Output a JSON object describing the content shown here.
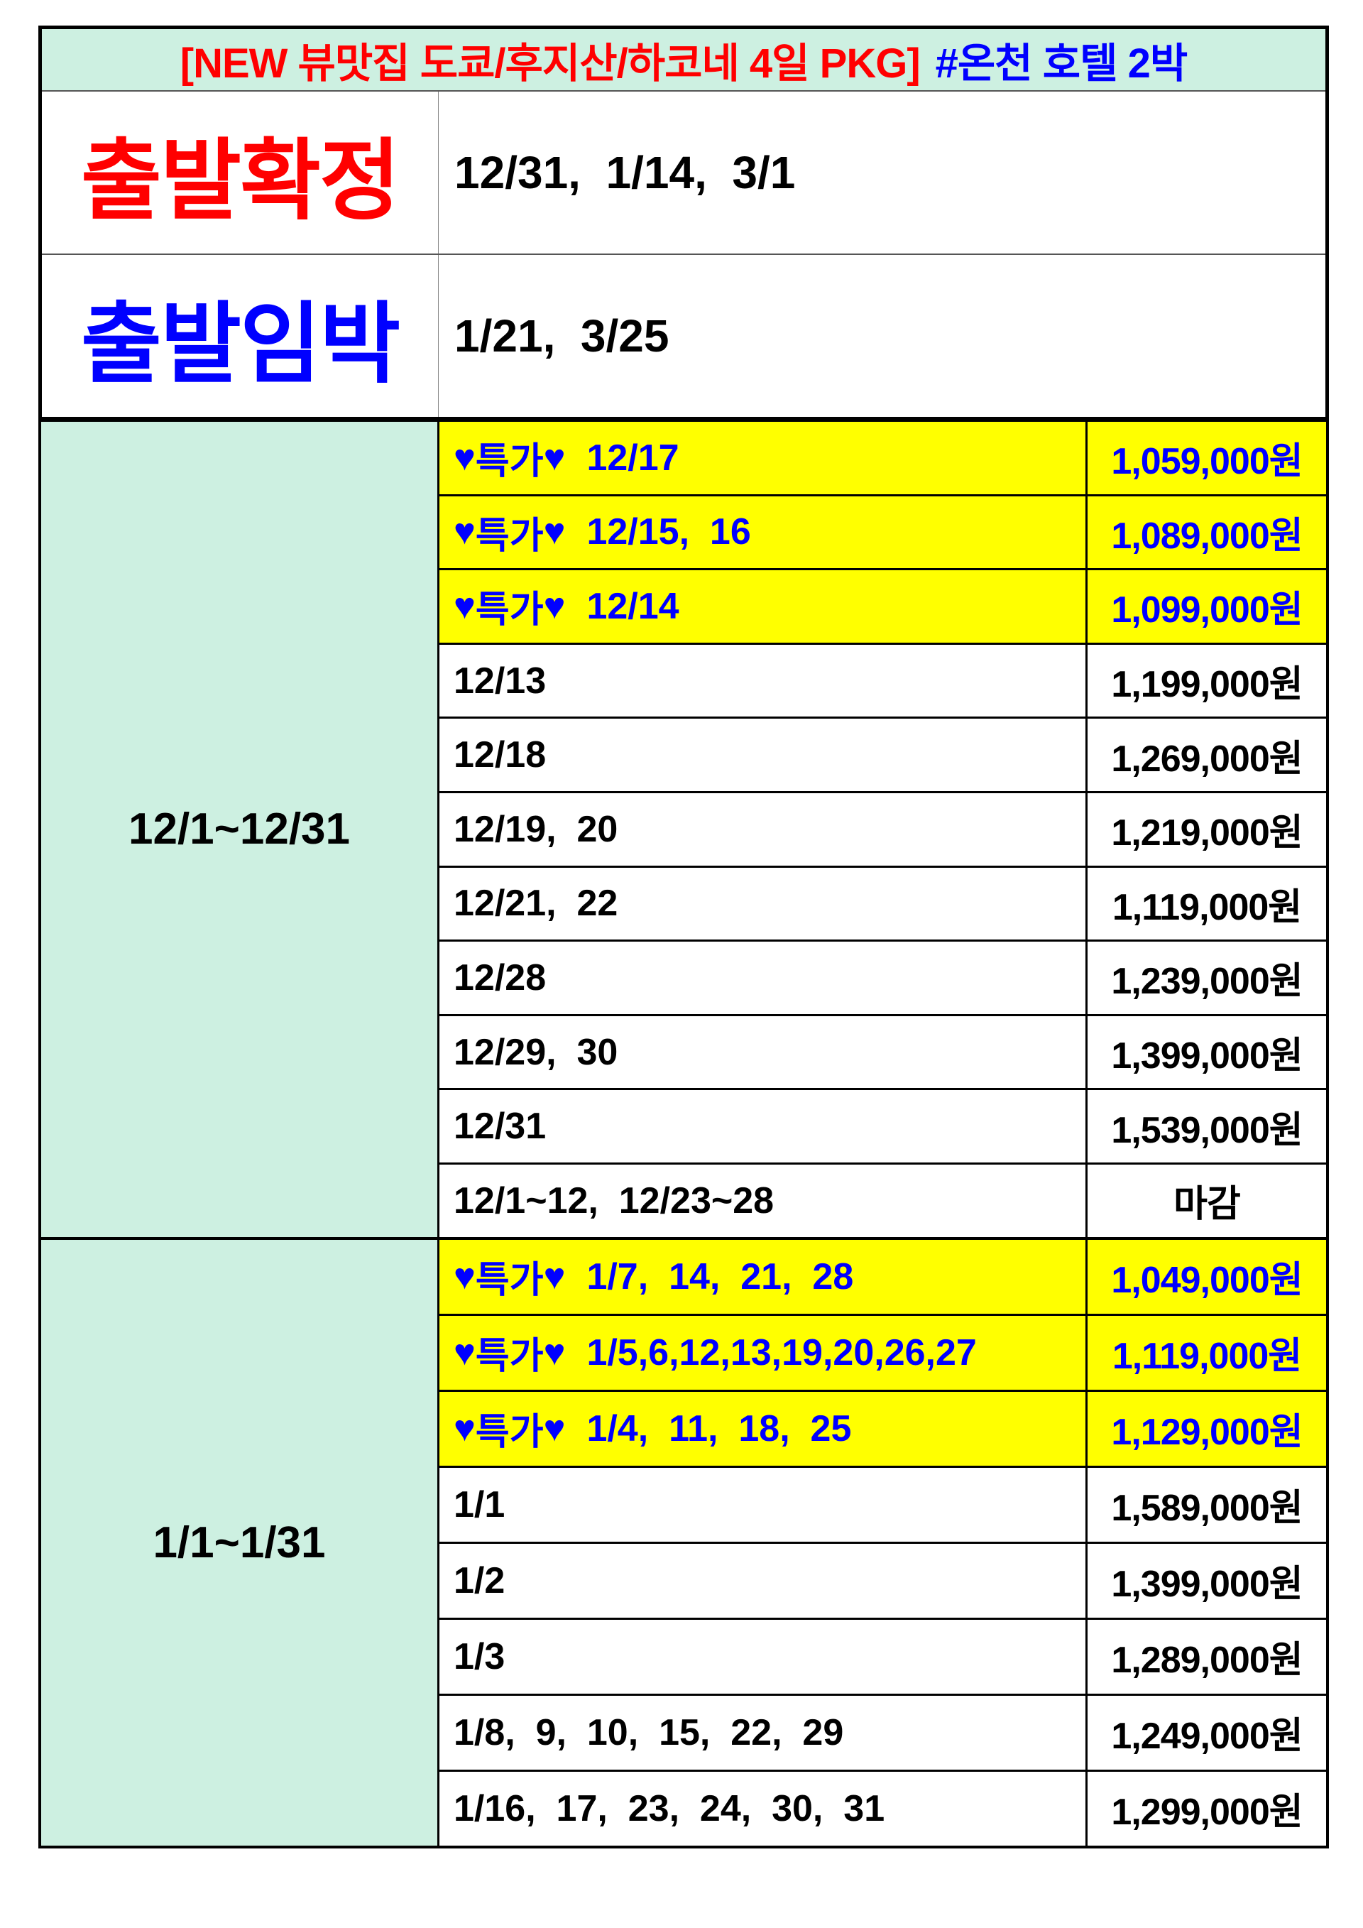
{
  "header": {
    "title_red": "[NEW 뷰맛집 도쿄/후지산/하코네 4일 PKG]",
    "title_blue": "#온천 호텔 2박"
  },
  "status": [
    {
      "label": "출발확정",
      "color": "#ff0000",
      "dates": "12/31,  1/14,  3/1"
    },
    {
      "label": "출발임박",
      "color": "#0000ff",
      "dates": "1/21,  3/25"
    }
  ],
  "special_label": "특가",
  "colors": {
    "special_bg": "#ffff00",
    "special_text": "#0000ff",
    "period_bg": "#cdf0e1"
  },
  "groups": [
    {
      "period": "12/1~12/31",
      "rows": [
        {
          "special": true,
          "dates": "12/17",
          "price": "1,059,000원"
        },
        {
          "special": true,
          "dates": "12/15,  16",
          "price": "1,089,000원"
        },
        {
          "special": true,
          "dates": "12/14",
          "price": "1,099,000원"
        },
        {
          "special": false,
          "dates": "12/13",
          "price": "1,199,000원"
        },
        {
          "special": false,
          "dates": "12/18",
          "price": "1,269,000원"
        },
        {
          "special": false,
          "dates": "12/19,  20",
          "price": "1,219,000원"
        },
        {
          "special": false,
          "dates": "12/21,  22",
          "price": "1,119,000원"
        },
        {
          "special": false,
          "dates": "12/28",
          "price": "1,239,000원"
        },
        {
          "special": false,
          "dates": "12/29,  30",
          "price": "1,399,000원"
        },
        {
          "special": false,
          "dates": "12/31",
          "price": "1,539,000원"
        },
        {
          "special": false,
          "dates": "12/1~12,  12/23~28",
          "price": "마감"
        }
      ]
    },
    {
      "period": "1/1~1/31",
      "rows": [
        {
          "special": true,
          "dates": "1/7,  14,  21,  28",
          "price": "1,049,000원"
        },
        {
          "special": true,
          "dates": "1/5,6,12,13,19,20,26,27",
          "price": "1,119,000원"
        },
        {
          "special": true,
          "dates": "1/4,  11,  18,  25",
          "price": "1,129,000원"
        },
        {
          "special": false,
          "dates": "1/1",
          "price": "1,589,000원"
        },
        {
          "special": false,
          "dates": "1/2",
          "price": "1,399,000원"
        },
        {
          "special": false,
          "dates": "1/3",
          "price": "1,289,000원"
        },
        {
          "special": false,
          "dates": "1/8,  9,  10,  15,  22,  29",
          "price": "1,249,000원"
        },
        {
          "special": false,
          "dates": "1/16,  17,  23,  24,  30,  31",
          "price": "1,299,000원"
        }
      ]
    }
  ]
}
